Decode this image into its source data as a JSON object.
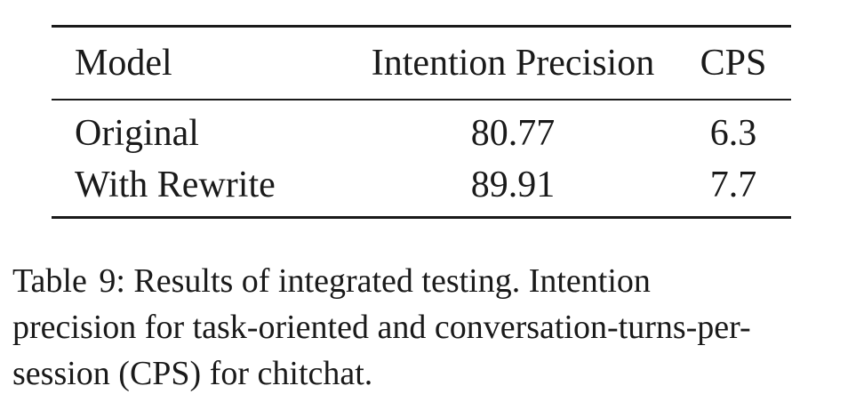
{
  "table": {
    "headers": [
      "Model",
      "Intention Precision",
      "CPS"
    ],
    "rows": [
      [
        "Original",
        "80.77",
        "6.3"
      ],
      [
        "With Rewrite",
        "89.91",
        "7.7"
      ]
    ]
  },
  "caption": {
    "label": "Table 9:",
    "text_line1": "Results of integrated testing.  Intention",
    "text_line2": "precision for task-oriented and conversation-turns-per-",
    "text_line3": "session (CPS) for chitchat."
  }
}
